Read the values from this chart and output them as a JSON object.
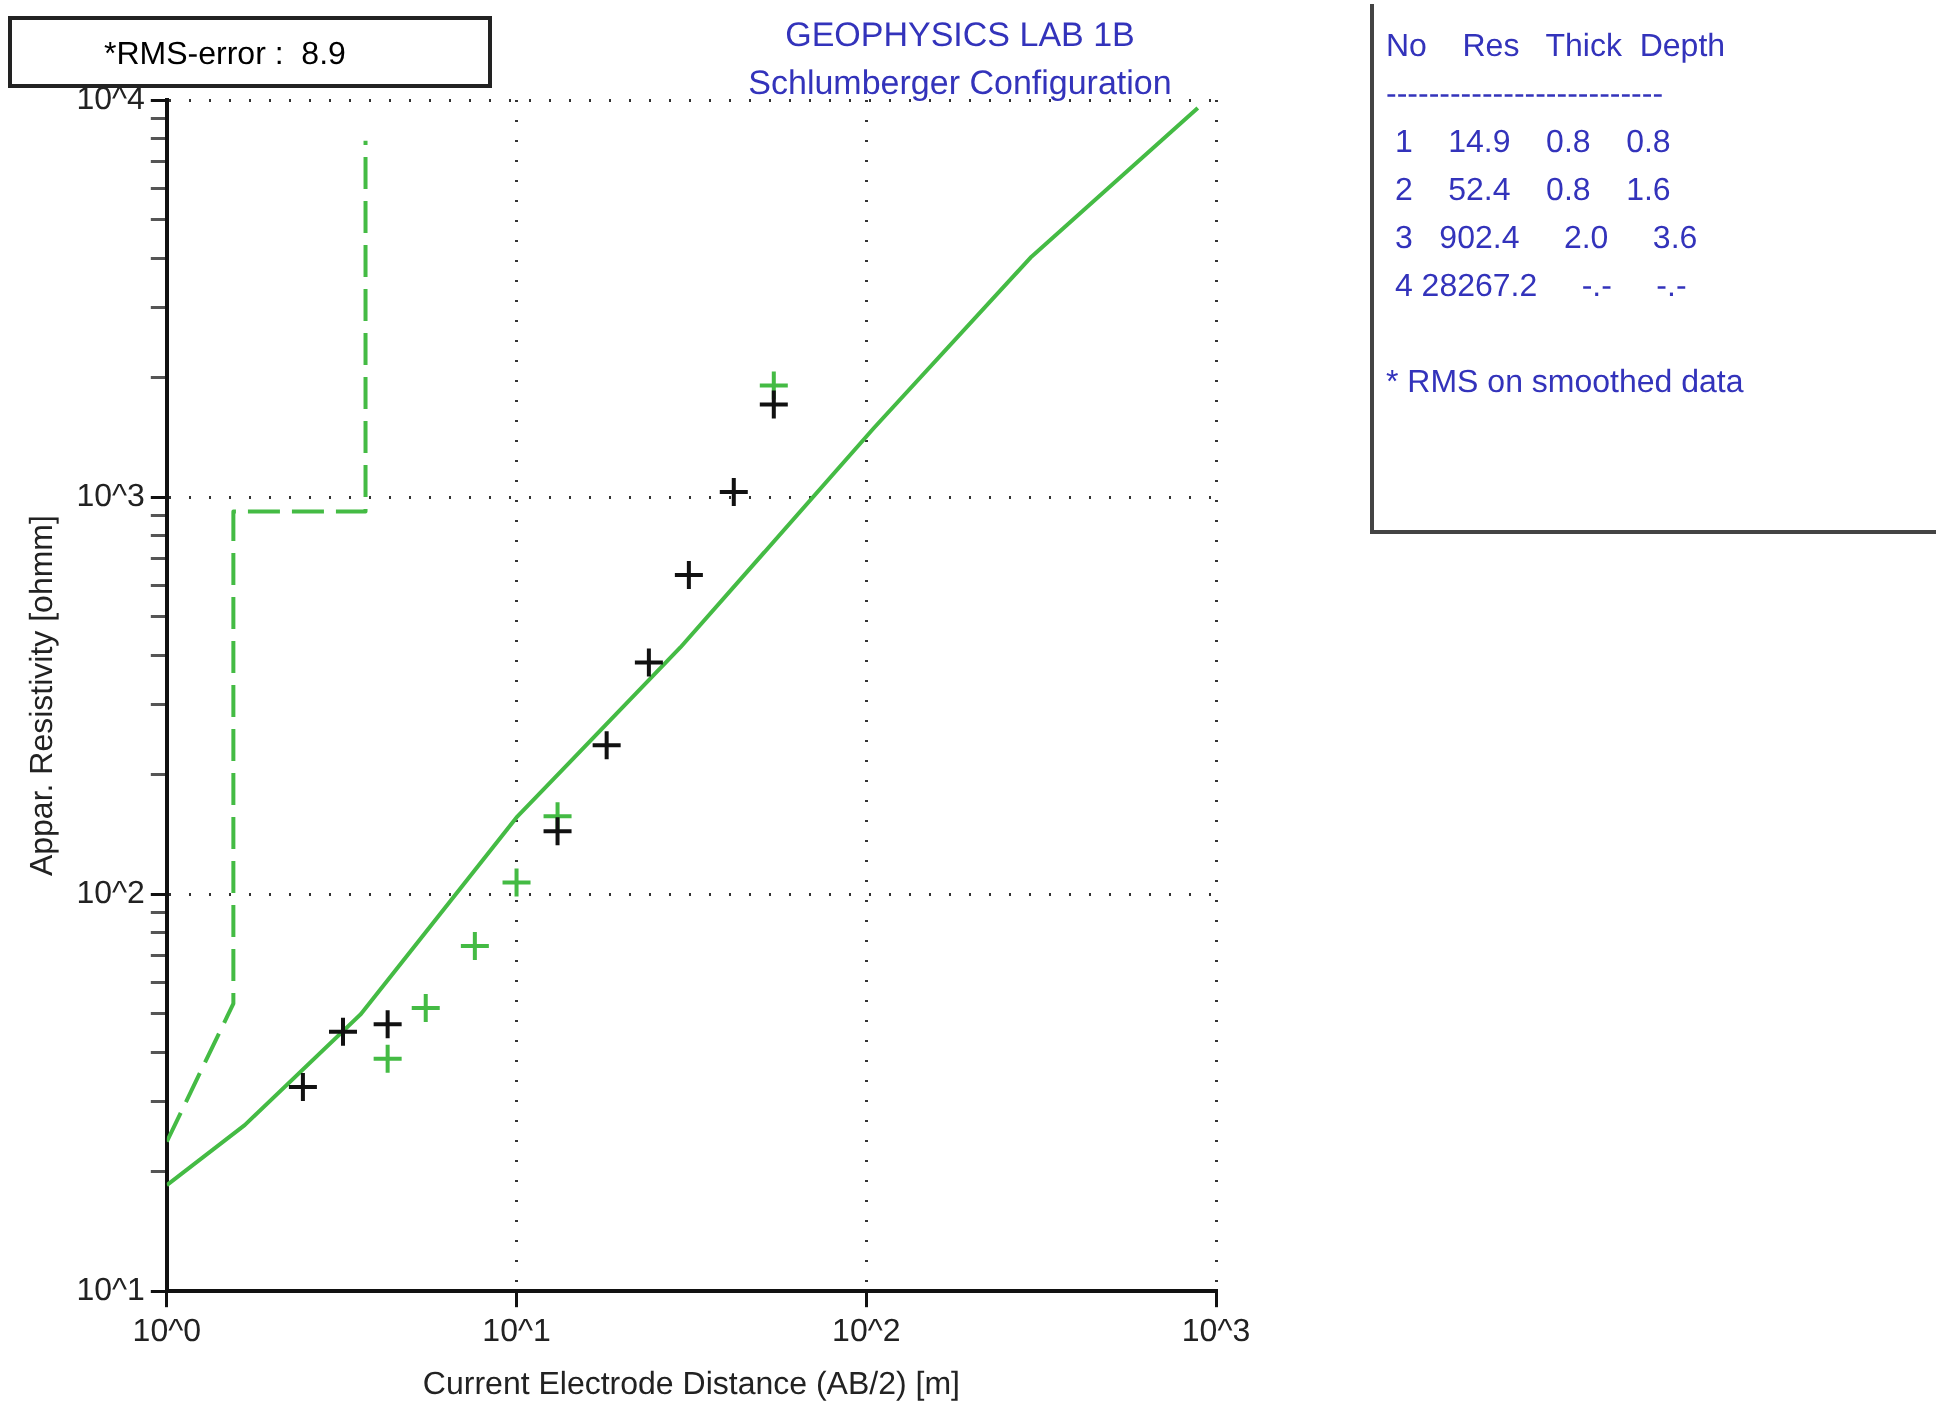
{
  "chart_data": {
    "type": "scatter",
    "title": "GEOPHYSICS LAB 1B",
    "subtitle": "Schlumberger Configuration",
    "xlabel": "Current Electrode Distance (AB/2) [m]",
    "ylabel": "Appar. Resistivity [ohmm]",
    "log": "xy",
    "grid": true,
    "legend": false,
    "xlim": [
      1,
      1000
    ],
    "ylim": [
      10,
      10000
    ],
    "xticks": [
      {
        "value": 1,
        "label": "10^0"
      },
      {
        "value": 10,
        "label": "10^1"
      },
      {
        "value": 100,
        "label": "10^2"
      },
      {
        "value": 1000,
        "label": "10^3"
      }
    ],
    "yticks": [
      {
        "value": 10,
        "label": "10^1"
      },
      {
        "value": 20,
        "label": null
      },
      {
        "value": 30,
        "label": null
      },
      {
        "value": 40,
        "label": null
      },
      {
        "value": 50,
        "label": null
      },
      {
        "value": 60,
        "label": null
      },
      {
        "value": 70,
        "label": null
      },
      {
        "value": 80,
        "label": null
      },
      {
        "value": 90,
        "label": null
      },
      {
        "value": 100,
        "label": "10^2"
      },
      {
        "value": 200,
        "label": null
      },
      {
        "value": 300,
        "label": null
      },
      {
        "value": 400,
        "label": null
      },
      {
        "value": 500,
        "label": null
      },
      {
        "value": 600,
        "label": null
      },
      {
        "value": 700,
        "label": null
      },
      {
        "value": 800,
        "label": null
      },
      {
        "value": 900,
        "label": null
      },
      {
        "value": 1000,
        "label": "10^3"
      },
      {
        "value": 2000,
        "label": null
      },
      {
        "value": 3000,
        "label": null
      },
      {
        "value": 4000,
        "label": null
      },
      {
        "value": 5000,
        "label": null
      },
      {
        "value": 6000,
        "label": null
      },
      {
        "value": 7000,
        "label": null
      },
      {
        "value": 8000,
        "label": null
      },
      {
        "value": 9000,
        "label": null
      },
      {
        "value": 10000,
        "label": "10^4"
      }
    ],
    "series": [
      {
        "color": "#111111",
        "marker": "cross",
        "x": [
          2.45,
          3.19,
          4.28,
          13.1,
          18.1,
          23.9,
          31.1,
          41.8,
          54.4
        ],
        "values": [
          32.7,
          45,
          47,
          144,
          237,
          383,
          636,
          1030,
          1710
        ]
      },
      {
        "color": "#44bb44",
        "marker": "cross",
        "x": [
          4.28,
          5.5,
          7.6,
          10,
          13.1,
          54.4
        ],
        "values": [
          38.5,
          51.7,
          74,
          107,
          157,
          1910
        ]
      },
      {
        "type": "line",
        "color": "#44bb44",
        "marker": "none",
        "line_style": "solid",
        "x": [
          1,
          1.67,
          3.59,
          10,
          29.4,
          105,
          295,
          887
        ],
        "values": [
          18.5,
          26.2,
          49.9,
          156,
          418,
          1490,
          4010,
          9550
        ]
      },
      {
        "type": "line",
        "color": "#44bb44",
        "marker": "none",
        "line_style": "dashed",
        "x": [
          1,
          1.55,
          1.55,
          3.7,
          3.7
        ],
        "values": [
          23.8,
          53,
          920,
          920,
          7900
        ]
      }
    ],
    "annotations": [
      "*RMS-error :  8.9",
      "No    Res   Thick  Depth",
      "--------------------------",
      " 1    14.9    0.8    0.8",
      " 2    52.4    0.8    1.6",
      " 3   902.4     2.0     3.6",
      " 4 28267.2     -.-     -.-",
      "* RMS on smoothed data"
    ]
  }
}
